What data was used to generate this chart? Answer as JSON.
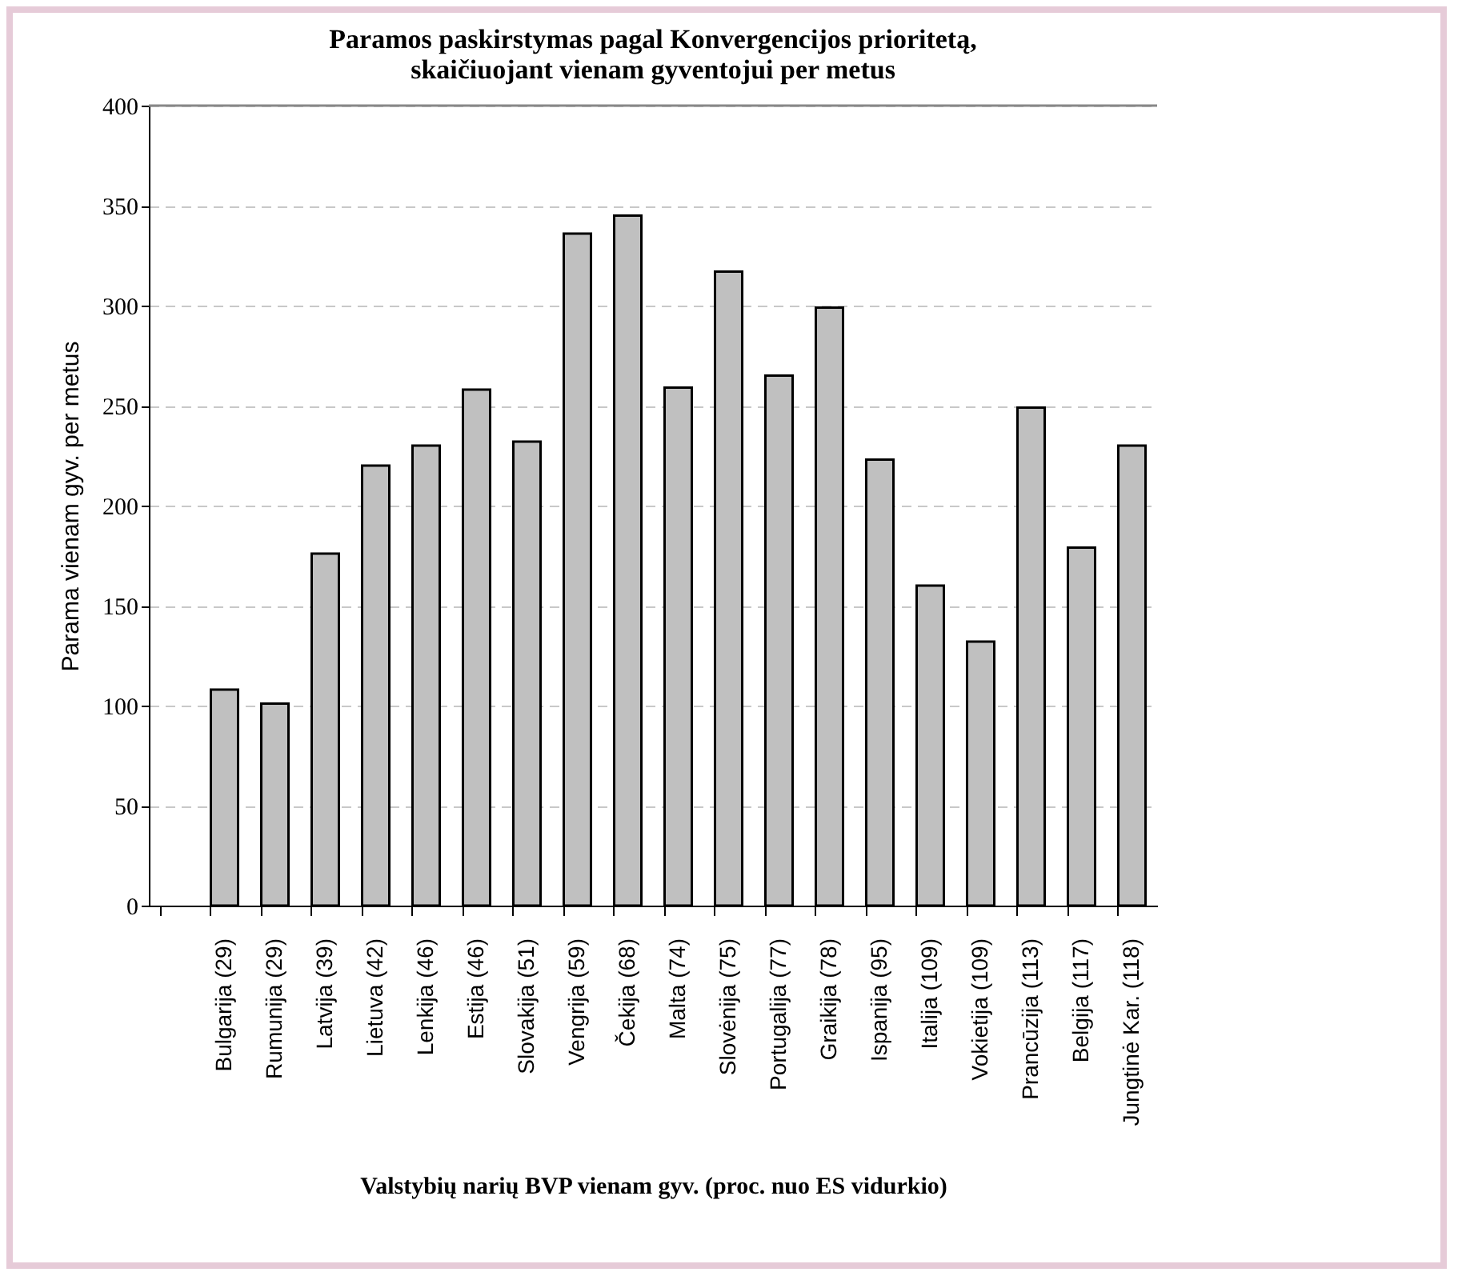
{
  "chart_data": {
    "type": "bar",
    "title": "Paramos paskirstymas pagal Konvergencijos prioritetą, skaičiuojant vienam gyventojui per metus",
    "xlabel": "Valstybių narių BVP vienam gyv. (proc. nuo ES vidurkio)",
    "ylabel": "Parama vienam gyv. per metus",
    "categories": [
      null,
      "Bulgarija (29)",
      "Rumunija (29)",
      "Latvija (39)",
      "Lietuva (42)",
      "Lenkija (46)",
      "Estija (46)",
      "Slovakija (51)",
      "Vengrija (59)",
      "Čekija (68)",
      "Malta (74)",
      "Slovėnija (75)",
      "Portugalija (77)",
      "Graikija (78)",
      "Ispanija (95)",
      "Italija (109)",
      "Vokietija (109)",
      "Prancūzija (113)",
      "Belgija (117)",
      "Jungtinė Kar. (118)"
    ],
    "values": [
      null,
      108,
      101,
      176,
      220,
      230,
      258,
      232,
      336,
      345,
      259,
      317,
      265,
      299,
      223,
      160,
      132,
      249,
      179,
      230
    ],
    "color": "#c0c0c0",
    "ylim": [
      0,
      400
    ],
    "yticks": [
      0,
      50,
      100,
      150,
      200,
      250,
      300,
      350,
      400
    ],
    "grid": "y"
  }
}
